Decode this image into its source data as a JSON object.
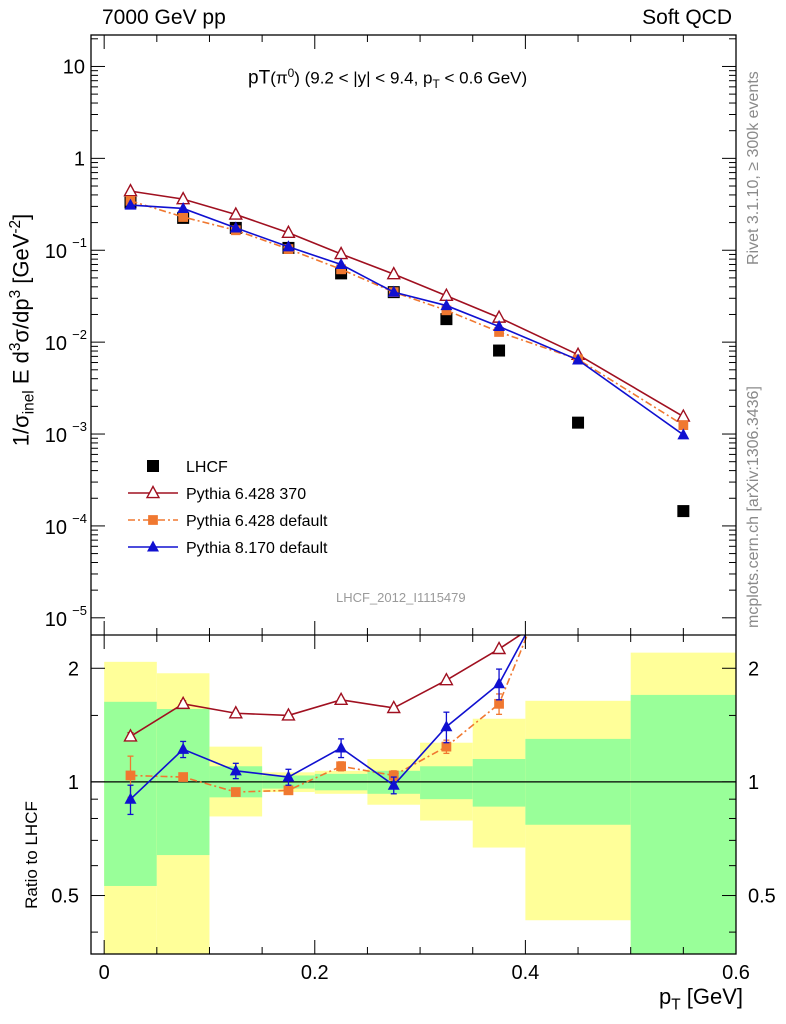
{
  "header": {
    "left": "7000 GeV pp",
    "right": "Soft QCD"
  },
  "side_text": {
    "rivet": "Rivet 3.1.10, ≥ 300k events",
    "mcplots": "mcplots.cern.ch [arXiv:1306.3436]"
  },
  "chart_data": [
    {
      "type": "scatter",
      "title": "pT(π⁰) (9.2 < |y| < 9.4, pT < 0.6 GeV)",
      "title_parts": {
        "main": "pT",
        "particle": "(π",
        "particle_sup": "0",
        "range_a": ") (9.2 < |y| < 9.4, p",
        "range_sub": "T",
        "range_b": " < 0.6 GeV)"
      },
      "ylabel": "1/σinel E d³σ/dp³ [GeV⁻²]",
      "ylabel_parts": {
        "a": "1/σ",
        "sub": "inel",
        "b": " E d",
        "sup1": "3",
        "c": "σ/dp",
        "sup2": "3",
        "d": " [GeV",
        "sup3": "-2",
        "e": "]"
      },
      "yscale": "log",
      "ylim": [
        6.5e-06,
        22
      ],
      "xlim": [
        -0.0125,
        0.6
      ],
      "yticks": [
        {
          "v": 10,
          "t": "10"
        },
        {
          "v": 1,
          "t": "1"
        },
        {
          "v": 0.1,
          "m": "10",
          "e": "−1"
        },
        {
          "v": 0.01,
          "m": "10",
          "e": "−2"
        },
        {
          "v": 0.001,
          "m": "10",
          "e": "−3"
        },
        {
          "v": 0.0001,
          "m": "10",
          "e": "−4"
        },
        {
          "v": 1e-05,
          "m": "10",
          "e": "−5"
        }
      ],
      "annotation": "LHCF_2012_I1115479",
      "legend_position": "bottom-left",
      "series": [
        {
          "name": "LHCF",
          "marker": "square",
          "color": "#000000",
          "x": [
            0.025,
            0.075,
            0.125,
            0.175,
            0.225,
            0.275,
            0.325,
            0.375,
            0.45,
            0.55
          ],
          "y": [
            0.33,
            0.225,
            0.175,
            0.106,
            0.056,
            0.035,
            0.0178,
            0.0081,
            0.00133,
            0.000145
          ]
        },
        {
          "name": "Pythia 6.428 370",
          "marker": "open-triangle",
          "color": "#a01020",
          "line": "solid",
          "x": [
            0.025,
            0.075,
            0.125,
            0.175,
            0.225,
            0.275,
            0.325,
            0.375,
            0.45,
            0.55
          ],
          "y": [
            0.44,
            0.36,
            0.245,
            0.155,
            0.091,
            0.055,
            0.032,
            0.0185,
            0.0073,
            0.00155
          ]
        },
        {
          "name": "Pythia 6.428 default",
          "marker": "filled-square",
          "color": "#f07830",
          "line": "dashdot",
          "x": [
            0.025,
            0.075,
            0.125,
            0.175,
            0.225,
            0.275,
            0.325,
            0.375,
            0.45,
            0.55
          ],
          "y": [
            0.345,
            0.23,
            0.165,
            0.103,
            0.062,
            0.035,
            0.0222,
            0.0129,
            0.0065,
            0.00125
          ]
        },
        {
          "name": "Pythia 8.170 default",
          "marker": "filled-triangle",
          "color": "#1010d0",
          "line": "solid",
          "x": [
            0.025,
            0.075,
            0.125,
            0.175,
            0.225,
            0.275,
            0.325,
            0.375,
            0.45,
            0.55
          ],
          "y": [
            0.31,
            0.285,
            0.175,
            0.109,
            0.07,
            0.035,
            0.025,
            0.0148,
            0.0064,
            0.00098
          ]
        }
      ]
    },
    {
      "type": "line",
      "ylabel": "Ratio to LHCF",
      "xlabel": "pT [GeV]",
      "xlabel_parts": {
        "a": "p",
        "sub": "T",
        "b": " [GeV]"
      },
      "yscale": "log",
      "ylim": [
        0.35,
        2.45
      ],
      "xlim": [
        -0.0125,
        0.6
      ],
      "xticks": [
        0,
        0.2,
        0.4,
        0.6
      ],
      "xtick_labels": [
        "0",
        "0.2",
        "0.4",
        "0.6"
      ],
      "yticks": [
        0.5,
        1,
        2
      ],
      "ytick_labels": [
        "0.5",
        "1",
        "2"
      ],
      "reference_line": 1,
      "bands": [
        {
          "x0": 0.0,
          "x1": 0.05,
          "green": [
            0.53,
            1.63
          ],
          "yellow": [
            0.35,
            2.08
          ]
        },
        {
          "x0": 0.05,
          "x1": 0.1,
          "green": [
            0.64,
            1.56
          ],
          "yellow": [
            0.35,
            1.94
          ]
        },
        {
          "x0": 0.1,
          "x1": 0.15,
          "green": [
            0.91,
            1.1
          ],
          "yellow": [
            0.81,
            1.24
          ]
        },
        {
          "x0": 0.15,
          "x1": 0.2,
          "green": [
            0.96,
            1.04
          ],
          "yellow": [
            0.94,
            1.06
          ]
        },
        {
          "x0": 0.2,
          "x1": 0.25,
          "green": [
            0.95,
            1.05
          ],
          "yellow": [
            0.93,
            1.07
          ]
        },
        {
          "x0": 0.25,
          "x1": 0.3,
          "green": [
            0.93,
            1.07
          ],
          "yellow": [
            0.87,
            1.15
          ]
        },
        {
          "x0": 0.3,
          "x1": 0.35,
          "green": [
            0.9,
            1.1
          ],
          "yellow": [
            0.79,
            1.27
          ]
        },
        {
          "x0": 0.35,
          "x1": 0.4,
          "green": [
            0.86,
            1.15
          ],
          "yellow": [
            0.67,
            1.47
          ]
        },
        {
          "x0": 0.4,
          "x1": 0.5,
          "green": [
            0.77,
            1.3
          ],
          "yellow": [
            0.43,
            1.64
          ]
        },
        {
          "x0": 0.5,
          "x1": 0.6,
          "green": [
            0.35,
            1.7
          ],
          "yellow": [
            0.35,
            2.2
          ]
        }
      ],
      "series": [
        {
          "name": "Pythia 6.428 370",
          "color": "#a01020",
          "marker": "open-triangle",
          "line": "solid",
          "x": [
            0.025,
            0.075,
            0.125,
            0.175,
            0.225,
            0.275,
            0.325,
            0.375,
            0.395,
            0.41
          ],
          "y": [
            1.32,
            1.61,
            1.52,
            1.5,
            1.65,
            1.57,
            1.86,
            2.25,
            2.45,
            2.8
          ],
          "err": [
            0.03,
            0.03,
            0.02,
            0.02,
            0.02,
            0.02,
            0.02,
            0.02,
            0,
            0
          ]
        },
        {
          "name": "Pythia 6.428 default",
          "color": "#f07830",
          "marker": "filled-square",
          "line": "dashdot",
          "x": [
            0.025,
            0.075,
            0.125,
            0.175,
            0.225,
            0.275,
            0.325,
            0.375,
            0.395,
            0.41
          ],
          "y": [
            1.04,
            1.03,
            0.94,
            0.95,
            1.1,
            1.04,
            1.24,
            1.61,
            2.2,
            2.8
          ],
          "err": [
            0.13,
            0.02,
            0.015,
            0.02,
            0.03,
            0.03,
            0.05,
            0.1,
            0,
            0
          ]
        },
        {
          "name": "Pythia 8.170 default",
          "color": "#1010d0",
          "marker": "filled-triangle",
          "line": "solid",
          "x": [
            0.025,
            0.075,
            0.125,
            0.175,
            0.225,
            0.275,
            0.325,
            0.375,
            0.4
          ],
          "y": [
            0.9,
            1.22,
            1.07,
            1.03,
            1.23,
            0.98,
            1.4,
            1.82,
            2.45
          ],
          "err": [
            0.08,
            0.06,
            0.05,
            0.05,
            0.07,
            0.05,
            0.13,
            0.17,
            0
          ]
        }
      ]
    }
  ]
}
